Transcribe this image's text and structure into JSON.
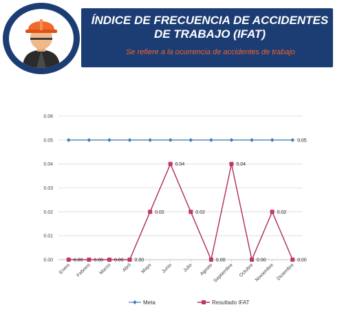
{
  "header": {
    "title_line1": "ÍNDICE DE FRECUENCIA DE ACCIDENTES",
    "title_line2": "DE TRABAJO (IFAT)",
    "subtitle": "Se refiere a la ocurrencia de accidentes de trabajo"
  },
  "icons": {
    "badge": "construction-worker-icon"
  },
  "colors": {
    "banner": "#1c3d73",
    "subtitle": "#f2622e",
    "meta": "#4a7ebb",
    "resultado": "#b0295b",
    "resultado_marker": "#c0395b"
  },
  "chart_data": {
    "type": "line",
    "categories": [
      "Enero",
      "Febrero",
      "Marzo",
      "Abril",
      "Mayo",
      "Junio",
      "Julio",
      "Agosto",
      "Septiembre",
      "Octubre",
      "Noviembre",
      "Diciembre"
    ],
    "series": [
      {
        "name": "Meta",
        "values": [
          0.05,
          0.05,
          0.05,
          0.05,
          0.05,
          0.05,
          0.05,
          0.05,
          0.05,
          0.05,
          0.05,
          0.05
        ],
        "marker": "diamond",
        "label_last_only": true
      },
      {
        "name": "Resultado IFAT",
        "values": [
          0,
          0,
          0,
          0,
          0.02,
          0.04,
          0.02,
          0,
          0.04,
          0,
          0.02,
          0
        ],
        "marker": "square",
        "label_all": true
      }
    ],
    "ylim": [
      0,
      0.06
    ],
    "yticks": [
      "0.00",
      "0.01",
      "0.02",
      "0.03",
      "0.04",
      "0.05",
      "0.06"
    ],
    "grid": true,
    "legend": "bottom",
    "label_format": "0.00"
  }
}
